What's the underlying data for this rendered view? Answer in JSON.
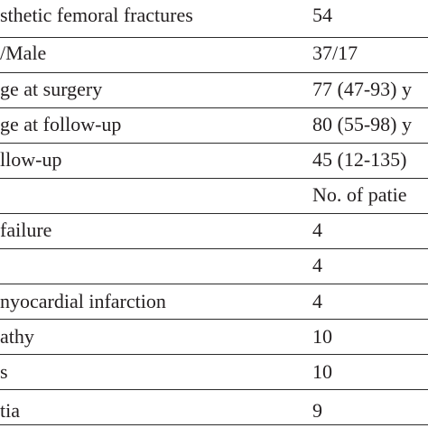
{
  "table": {
    "rows": [
      {
        "label": "sthetic femoral fractures",
        "value": "54"
      },
      {
        "label": "/Male",
        "value": "37/17"
      },
      {
        "label": "ge at surgery",
        "value": "77 (47-93) y"
      },
      {
        "label": "ge at follow-up",
        "value": "80 (55-98) y"
      },
      {
        "label": "llow-up",
        "value": "45 (12-135)"
      },
      {
        "label": "",
        "value": "No. of patie"
      },
      {
        "label": " failure",
        "value": "4"
      },
      {
        "label": "",
        "value": "4"
      },
      {
        "label": "nyocardial infarction",
        "value": "4"
      },
      {
        "label": "athy",
        "value": "10"
      },
      {
        "label": "s",
        "value": "10"
      },
      {
        "label": "tia",
        "value": "9"
      }
    ]
  }
}
